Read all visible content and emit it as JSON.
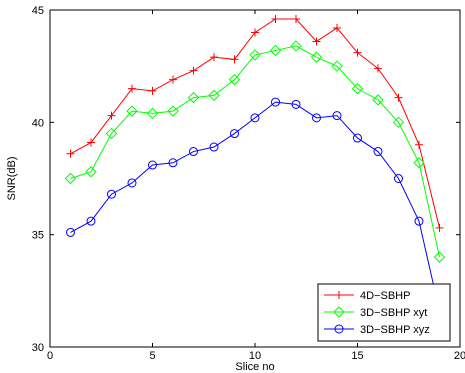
{
  "chart_data": {
    "type": "line",
    "xlabel": "Slice no",
    "ylabel": "SNR(dB)",
    "xlim": [
      0,
      20
    ],
    "ylim": [
      30,
      45
    ],
    "xticks": [
      0,
      5,
      10,
      15,
      20
    ],
    "yticks": [
      30,
      35,
      40,
      45
    ],
    "grid": false,
    "legend_position": "bottom-right",
    "x": [
      1,
      2,
      3,
      4,
      5,
      6,
      7,
      8,
      9,
      10,
      11,
      12,
      13,
      14,
      15,
      16,
      17,
      18,
      19
    ],
    "series": [
      {
        "name": "4D−SBHP",
        "color": "#ff0000",
        "marker": "plus",
        "values": [
          38.6,
          39.1,
          40.3,
          41.5,
          41.4,
          41.9,
          42.3,
          42.9,
          42.8,
          44.0,
          44.6,
          44.6,
          43.6,
          44.2,
          43.1,
          42.4,
          41.1,
          39.0,
          35.3
        ]
      },
      {
        "name": "3D−SBHP xyt",
        "color": "#00ff00",
        "marker": "diamond",
        "values": [
          37.5,
          37.8,
          39.5,
          40.5,
          40.4,
          40.5,
          41.1,
          41.2,
          41.9,
          43.0,
          43.2,
          43.4,
          42.9,
          42.5,
          41.5,
          41.0,
          40.0,
          38.2,
          34.0
        ]
      },
      {
        "name": "3D−SBHP xyz",
        "color": "#0000ff",
        "marker": "circle",
        "values": [
          35.1,
          35.6,
          36.8,
          37.3,
          38.1,
          38.2,
          38.7,
          38.9,
          39.5,
          40.2,
          40.9,
          40.8,
          40.2,
          40.3,
          39.3,
          38.7,
          37.5,
          35.6,
          31.6
        ]
      }
    ]
  }
}
